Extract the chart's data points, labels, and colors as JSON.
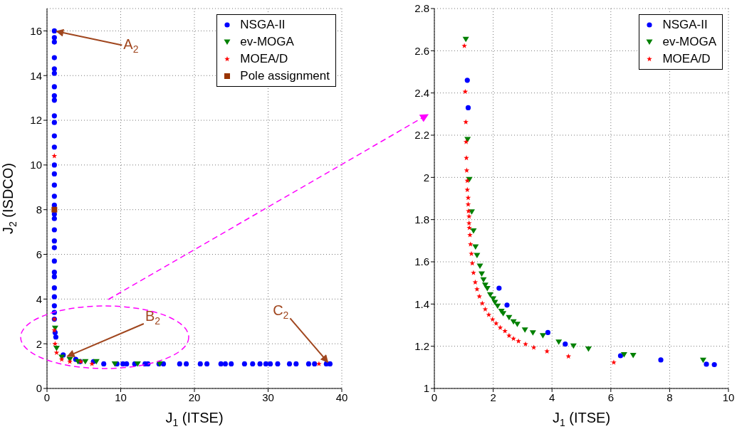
{
  "chart_data": [
    {
      "type": "scatter",
      "xlabel": "J$_{1}$ (ITSE)",
      "ylabel": "J$_{2}$ (ISDCO)",
      "xlim": [
        0,
        40
      ],
      "ylim": [
        0,
        17
      ],
      "xticks": [
        0,
        10,
        20,
        30,
        40
      ],
      "yticks": [
        0,
        2,
        4,
        6,
        8,
        10,
        12,
        14,
        16
      ],
      "grid": true,
      "legend": "top right",
      "annotations": [
        {
          "text": "A$_{2}$",
          "x": 1,
          "y": 16
        },
        {
          "text": "B$_{2}$",
          "x": 2.5,
          "y": 1.4
        },
        {
          "text": "C$_{2}$",
          "x": 38.3,
          "y": 1.1
        }
      ],
      "series": [
        {
          "name": "NSGA-II",
          "color": "#0000ff",
          "marker": "circle",
          "x": [
            1,
            1,
            1,
            1,
            1,
            1,
            1,
            1,
            1,
            1,
            1,
            1,
            1,
            1,
            1,
            1,
            1,
            1,
            1,
            1,
            1,
            1,
            1,
            1,
            1,
            1,
            1,
            1,
            1,
            1,
            1,
            1.1,
            1.2,
            2.2,
            3.9,
            4.5,
            6.3,
            7.7,
            9.5,
            10.3,
            10.8,
            11.9,
            13.3,
            13.7,
            15.2,
            15.8,
            18.0,
            18.9,
            20.8,
            21.7,
            23.6,
            24.2,
            25.0,
            26.8,
            27.9,
            28.9,
            29.7,
            30.3,
            31.3,
            32.9,
            33.8,
            35.5,
            36.3,
            37.9,
            38.4
          ],
          "values": [
            16,
            15.7,
            15.5,
            14.8,
            14.3,
            14.1,
            13.5,
            13.1,
            12.9,
            12.2,
            11.9,
            11.3,
            10.8,
            10.0,
            9.6,
            9.1,
            8.6,
            8.2,
            7.8,
            7.6,
            7.1,
            6.6,
            6.3,
            5.7,
            5.2,
            5.0,
            4.5,
            4.1,
            3.7,
            3.4,
            3.1,
            2.5,
            2.3,
            1.5,
            1.3,
            1.2,
            1.2,
            1.1,
            1.1,
            1.1,
            1.1,
            1.1,
            1.1,
            1.1,
            1.1,
            1.1,
            1.1,
            1.1,
            1.1,
            1.1,
            1.1,
            1.1,
            1.1,
            1.1,
            1.1,
            1.1,
            1.1,
            1.1,
            1.1,
            1.1,
            1.1,
            1.1,
            1.1,
            1.1,
            1.1
          ]
        },
        {
          "name": "ev-MOGA",
          "color": "#008000",
          "marker": "triangle",
          "x": [
            1.1,
            1.3,
            2.0,
            3.1,
            4.2,
            5.2,
            6.7,
            9.2,
            12.3,
            15.3
          ],
          "values": [
            2.7,
            1.8,
            1.4,
            1.3,
            1.2,
            1.2,
            1.2,
            1.1,
            1.1,
            1.1
          ]
        },
        {
          "name": "MOEA/D",
          "color": "#ff0000",
          "marker": "star",
          "x": [
            1,
            1,
            1,
            1.1,
            1.3,
            2,
            3.1,
            4.6,
            6.1,
            36.9
          ],
          "values": [
            10.4,
            3.1,
            2.6,
            2.0,
            1.6,
            1.3,
            1.2,
            1.2,
            1.1,
            1.1
          ]
        },
        {
          "name": "Pole assignment",
          "color": "#993300",
          "marker": "square",
          "x": [
            1
          ],
          "values": [
            8
          ]
        }
      ]
    },
    {
      "type": "scatter",
      "xlabel": "J$_{1}$ (ITSE)",
      "xlim": [
        0,
        10
      ],
      "ylim": [
        1,
        2.8
      ],
      "xticks": [
        0,
        2,
        4,
        6,
        8,
        10
      ],
      "yticks": [
        1,
        1.2,
        1.4,
        1.6,
        1.8,
        2,
        2.2,
        2.4,
        2.6,
        2.8
      ],
      "grid": true,
      "legend": "top right",
      "series": [
        {
          "name": "NSGA-II",
          "color": "#0000ff",
          "marker": "circle",
          "x": [
            1.12,
            1.15,
            2.2,
            2.47,
            3.86,
            4.45,
            6.28,
            6.33,
            7.7,
            9.25,
            9.52
          ],
          "values": [
            2.46,
            2.33,
            1.475,
            1.395,
            1.265,
            1.21,
            null,
            1.155,
            1.135,
            1.115,
            1.113
          ]
        },
        {
          "name": "ev-MOGA",
          "color": "#008000",
          "marker": "triangle",
          "x": [
            1.07,
            1.13,
            1.19,
            1.27,
            1.33,
            1.4,
            1.45,
            1.55,
            1.61,
            1.67,
            1.73,
            1.8,
            1.9,
            2.0,
            2.06,
            2.15,
            2.28,
            2.34,
            2.54,
            2.69,
            2.82,
            3.08,
            3.35,
            3.69,
            4.23,
            4.73,
            5.24,
            6.45,
            6.76,
            9.14
          ],
          "values": [
            2.654,
            2.18,
            1.99,
            1.837,
            1.747,
            1.671,
            1.63,
            1.58,
            1.543,
            1.515,
            1.49,
            1.474,
            1.444,
            1.425,
            1.408,
            1.39,
            1.366,
            1.355,
            1.336,
            1.316,
            1.304,
            1.277,
            1.264,
            1.25,
            1.22,
            1.201,
            1.187,
            1.16,
            1.157,
            1.134
          ]
        },
        {
          "name": "MOEA/D",
          "color": "#ff0000",
          "marker": "star",
          "x": [
            1.02,
            1.05,
            1.07,
            1.08,
            1.09,
            1.1,
            1.12,
            1.12,
            1.15,
            1.15,
            1.16,
            1.18,
            1.18,
            1.19,
            1.21,
            1.23,
            1.26,
            1.29,
            1.33,
            1.39,
            1.45,
            1.53,
            1.63,
            1.73,
            1.85,
            1.98,
            2.1,
            2.24,
            2.4,
            2.54,
            2.69,
            2.86,
            3.1,
            3.38,
            3.83,
            4.56,
            6.1
          ],
          "values": [
            2.623,
            2.406,
            2.262,
            2.168,
            2.092,
            2.033,
            1.984,
            1.941,
            1.903,
            1.872,
            1.84,
            1.815,
            1.783,
            1.761,
            1.727,
            1.683,
            1.638,
            1.593,
            1.548,
            1.503,
            1.47,
            1.436,
            1.403,
            1.375,
            1.349,
            1.327,
            1.308,
            1.288,
            1.272,
            1.25,
            1.236,
            1.224,
            1.21,
            1.194,
            1.176,
            1.152,
            1.123
          ]
        }
      ]
    }
  ]
}
